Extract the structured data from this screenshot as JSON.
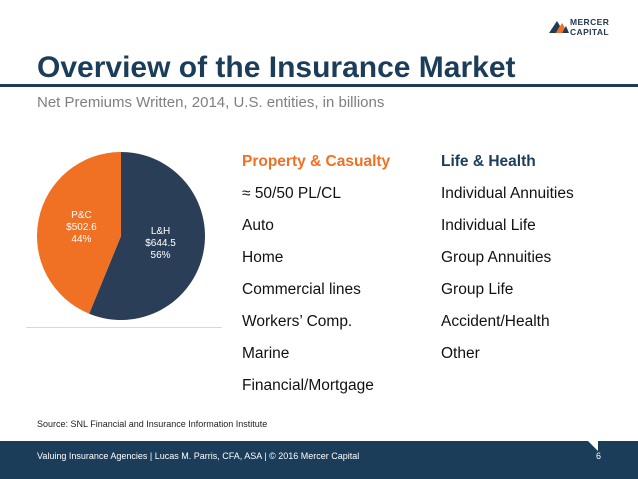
{
  "header": {
    "logo_line1": "MERCER",
    "logo_line2": "CAPITAL",
    "title": "Overview of the Insurance Market",
    "subtitle": "Net Premiums Written, 2014, U.S. entities, in billions"
  },
  "chart_data": {
    "type": "pie",
    "slices": [
      {
        "name": "L&H",
        "value_label": "$644.5",
        "pct_label": "56%",
        "value": 644.5,
        "percent": 56,
        "color": "#2a3f57"
      },
      {
        "name": "P&C",
        "value_label": "$502.6",
        "pct_label": "44%",
        "value": 502.6,
        "percent": 44,
        "color": "#f07024"
      }
    ]
  },
  "columns": {
    "pc": {
      "heading": "Property & Casualty",
      "items": [
        "≈ 50/50 PL/CL",
        "Auto",
        "Home",
        "Commercial lines",
        "Workers’ Comp.",
        "Marine",
        "Financial/Mortgage"
      ]
    },
    "lh": {
      "heading": "Life & Health",
      "items": [
        "Individual Annuities",
        "Individual Life",
        "Group Annuities",
        "Group Life",
        "Accident/Health",
        "Other"
      ]
    }
  },
  "source": "Source: SNL Financial and Insurance Information Institute",
  "footer": {
    "text": "Valuing Insurance Agencies | Lucas M. Parris, CFA, ASA | © 2016 Mercer Capital",
    "page": "6"
  },
  "colors": {
    "navy": "#1b3d5a",
    "orange": "#f07024"
  }
}
